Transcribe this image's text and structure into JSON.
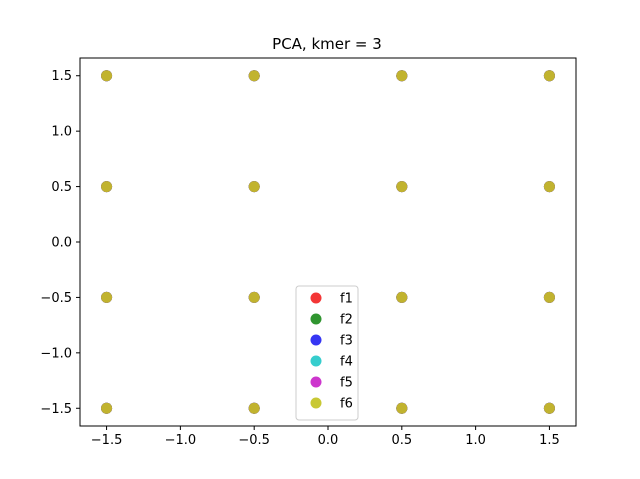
{
  "chart_data": {
    "type": "scatter",
    "title": "PCA, kmer = 3",
    "xlabel": "",
    "ylabel": "",
    "xlim": [
      -1.68,
      1.68
    ],
    "ylim": [
      -1.66,
      1.66
    ],
    "xticks": [
      -1.5,
      -1.0,
      -0.5,
      0.0,
      0.5,
      1.0,
      1.5
    ],
    "xtick_labels": [
      "−1.5",
      "−1.0",
      "−0.5",
      "0.0",
      "0.5",
      "1.0",
      "1.5"
    ],
    "yticks": [
      -1.5,
      -1.0,
      -0.5,
      0.0,
      0.5,
      1.0,
      1.5
    ],
    "ytick_labels": [
      "−1.5",
      "−1.0",
      "−0.5",
      "0.0",
      "0.5",
      "1.0",
      "1.5"
    ],
    "grid": false,
    "legend_position": "bottom-center",
    "series": [
      {
        "name": "f1",
        "color": "#f22020",
        "x": [
          -1.5,
          -0.5,
          0.5,
          1.5,
          -1.5,
          -0.5,
          0.5,
          1.5,
          -1.5,
          -0.5,
          0.5,
          1.5,
          -1.5,
          -0.5,
          0.5,
          1.5
        ],
        "y": [
          1.5,
          1.5,
          1.5,
          1.5,
          0.5,
          0.5,
          0.5,
          0.5,
          -0.5,
          -0.5,
          -0.5,
          -0.5,
          -1.5,
          -1.5,
          -1.5,
          -1.5
        ]
      },
      {
        "name": "f2",
        "color": "#1a8a1a",
        "x": [
          -1.5,
          -0.5,
          0.5,
          1.5,
          -1.5,
          -0.5,
          0.5,
          1.5,
          -1.5,
          -0.5,
          0.5,
          1.5,
          -1.5,
          -0.5,
          0.5,
          1.5
        ],
        "y": [
          1.5,
          1.5,
          1.5,
          1.5,
          0.5,
          0.5,
          0.5,
          0.5,
          -0.5,
          -0.5,
          -0.5,
          -0.5,
          -1.5,
          -1.5,
          -1.5,
          -1.5
        ]
      },
      {
        "name": "f3",
        "color": "#2020f2",
        "x": [
          -1.5,
          -0.5,
          0.5,
          1.5,
          -1.5,
          -0.5,
          0.5,
          1.5,
          -1.5,
          -0.5,
          0.5,
          1.5,
          -1.5,
          -0.5,
          0.5,
          1.5
        ],
        "y": [
          1.5,
          1.5,
          1.5,
          1.5,
          0.5,
          0.5,
          0.5,
          0.5,
          -0.5,
          -0.5,
          -0.5,
          -0.5,
          -1.5,
          -1.5,
          -1.5,
          -1.5
        ]
      },
      {
        "name": "f4",
        "color": "#20c8c8",
        "x": [
          -1.5,
          -0.5,
          0.5,
          1.5,
          -1.5,
          -0.5,
          0.5,
          1.5,
          -1.5,
          -0.5,
          0.5,
          1.5,
          -1.5,
          -0.5,
          0.5,
          1.5
        ],
        "y": [
          1.5,
          1.5,
          1.5,
          1.5,
          0.5,
          0.5,
          0.5,
          0.5,
          -0.5,
          -0.5,
          -0.5,
          -0.5,
          -1.5,
          -1.5,
          -1.5,
          -1.5
        ]
      },
      {
        "name": "f5",
        "color": "#c820c8",
        "x": [
          -1.5,
          -0.5,
          0.5,
          1.5,
          -1.5,
          -0.5,
          0.5,
          1.5,
          -1.5,
          -0.5,
          0.5,
          1.5,
          -1.5,
          -0.5,
          0.5,
          1.5
        ],
        "y": [
          1.5,
          1.5,
          1.5,
          1.5,
          0.5,
          0.5,
          0.5,
          0.5,
          -0.5,
          -0.5,
          -0.5,
          -0.5,
          -1.5,
          -1.5,
          -1.5,
          -1.5
        ]
      },
      {
        "name": "f6",
        "color": "#c2c21e",
        "x": [
          -1.5,
          -0.5,
          0.5,
          1.5,
          -1.5,
          -0.5,
          0.5,
          1.5,
          -1.5,
          -0.5,
          0.5,
          1.5,
          -1.5,
          -0.5,
          0.5,
          1.5
        ],
        "y": [
          1.5,
          1.5,
          1.5,
          1.5,
          0.5,
          0.5,
          0.5,
          0.5,
          -0.5,
          -0.5,
          -0.5,
          -0.5,
          -1.5,
          -1.5,
          -1.5,
          -1.5
        ]
      }
    ]
  }
}
